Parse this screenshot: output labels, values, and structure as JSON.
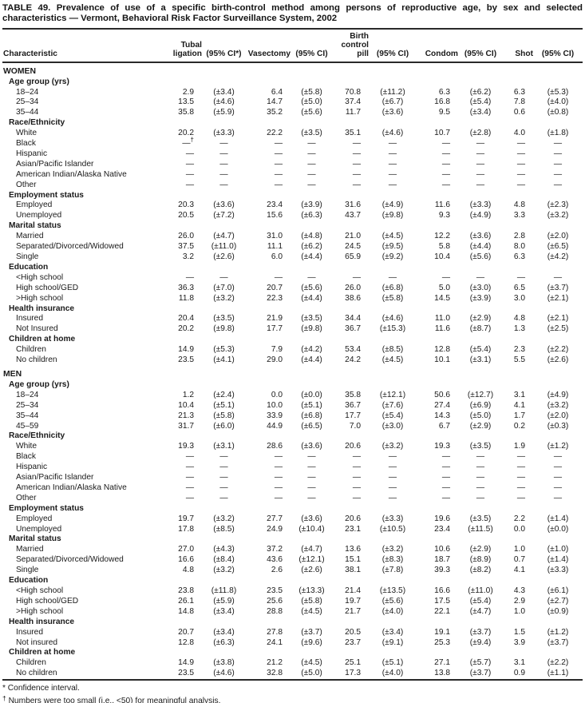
{
  "title": "TABLE 49. Prevalence of use of a specific birth-control method among persons of reproductive age, by sex and selected characteristics — Vermont, Behavioral Risk Factor Surveillance System, 2002",
  "table": {
    "columns": [
      "Characteristic",
      "Tubal\nligation",
      "(95% CI*)",
      "Vasectomy",
      "(95% CI)",
      "Birth\ncontrol\npill",
      "(95% CI)",
      "Condom",
      "(95% CI)",
      "Shot",
      "(95% CI)"
    ],
    "sections": [
      {
        "group": "WOMEN",
        "subsections": [
          {
            "label": "Age group (yrs)",
            "rows": [
              {
                "label": "18–24",
                "values": [
                  "2.9",
                  "(±3.4)",
                  "6.4",
                  "(±5.8)",
                  "70.8",
                  "(±11.2)",
                  "6.3",
                  "(±6.2)",
                  "6.3",
                  "(±5.3)"
                ]
              },
              {
                "label": "25–34",
                "values": [
                  "13.5",
                  "(±4.6)",
                  "14.7",
                  "(±5.0)",
                  "37.4",
                  "(±6.7)",
                  "16.8",
                  "(±5.4)",
                  "7.8",
                  "(±4.0)"
                ]
              },
              {
                "label": "35–44",
                "values": [
                  "35.8",
                  "(±5.9)",
                  "35.2",
                  "(±5.6)",
                  "11.7",
                  "(±3.6)",
                  "9.5",
                  "(±3.4)",
                  "0.6",
                  "(±0.8)"
                ]
              }
            ]
          },
          {
            "label": "Race/Ethnicity",
            "rows": [
              {
                "label": "White",
                "values": [
                  "20.2",
                  "(±3.3)",
                  "22.2",
                  "(±3.5)",
                  "35.1",
                  "(±4.6)",
                  "10.7",
                  "(±2.8)",
                  "4.0",
                  "(±1.8)"
                ]
              },
              {
                "label": "Black",
                "values": [
                  "—†",
                  "—",
                  "—",
                  "—",
                  "—",
                  "—",
                  "—",
                  "—",
                  "—",
                  "—"
                ]
              },
              {
                "label": "Hispanic",
                "values": [
                  "—",
                  "—",
                  "—",
                  "—",
                  "—",
                  "—",
                  "—",
                  "—",
                  "—",
                  "—"
                ]
              },
              {
                "label": "Asian/Pacific Islander",
                "values": [
                  "—",
                  "—",
                  "—",
                  "—",
                  "—",
                  "—",
                  "—",
                  "—",
                  "—",
                  "—"
                ]
              },
              {
                "label": "American Indian/Alaska Native",
                "values": [
                  "—",
                  "—",
                  "—",
                  "—",
                  "—",
                  "—",
                  "—",
                  "—",
                  "—",
                  "—"
                ]
              },
              {
                "label": "Other",
                "values": [
                  "—",
                  "—",
                  "—",
                  "—",
                  "—",
                  "—",
                  "—",
                  "—",
                  "—",
                  "—"
                ]
              }
            ]
          },
          {
            "label": "Employment status",
            "rows": [
              {
                "label": "Employed",
                "values": [
                  "20.3",
                  "(±3.6)",
                  "23.4",
                  "(±3.9)",
                  "31.6",
                  "(±4.9)",
                  "11.6",
                  "(±3.3)",
                  "4.8",
                  "(±2.3)"
                ]
              },
              {
                "label": "Unemployed",
                "values": [
                  "20.5",
                  "(±7.2)",
                  "15.6",
                  "(±6.3)",
                  "43.7",
                  "(±9.8)",
                  "9.3",
                  "(±4.9)",
                  "3.3",
                  "(±3.2)"
                ]
              }
            ]
          },
          {
            "label": "Marital status",
            "rows": [
              {
                "label": "Married",
                "values": [
                  "26.0",
                  "(±4.7)",
                  "31.0",
                  "(±4.8)",
                  "21.0",
                  "(±4.5)",
                  "12.2",
                  "(±3.6)",
                  "2.8",
                  "(±2.0)"
                ]
              },
              {
                "label": "Separated/Divorced/Widowed",
                "values": [
                  "37.5",
                  "(±11.0)",
                  "11.1",
                  "(±6.2)",
                  "24.5",
                  "(±9.5)",
                  "5.8",
                  "(±4.4)",
                  "8.0",
                  "(±6.5)"
                ]
              },
              {
                "label": "Single",
                "values": [
                  "3.2",
                  "(±2.6)",
                  "6.0",
                  "(±4.4)",
                  "65.9",
                  "(±9.2)",
                  "10.4",
                  "(±5.6)",
                  "6.3",
                  "(±4.2)"
                ]
              }
            ]
          },
          {
            "label": "Education",
            "rows": [
              {
                "label": "<High school",
                "values": [
                  "—",
                  "—",
                  "—",
                  "—",
                  "—",
                  "—",
                  "—",
                  "—",
                  "—",
                  "—"
                ]
              },
              {
                "label": "High school/GED",
                "values": [
                  "36.3",
                  "(±7.0)",
                  "20.7",
                  "(±5.6)",
                  "26.0",
                  "(±6.8)",
                  "5.0",
                  "(±3.0)",
                  "6.5",
                  "(±3.7)"
                ]
              },
              {
                "label": ">High school",
                "values": [
                  "11.8",
                  "(±3.2)",
                  "22.3",
                  "(±4.4)",
                  "38.6",
                  "(±5.8)",
                  "14.5",
                  "(±3.9)",
                  "3.0",
                  "(±2.1)"
                ]
              }
            ]
          },
          {
            "label": "Health insurance",
            "rows": [
              {
                "label": "Insured",
                "values": [
                  "20.4",
                  "(±3.5)",
                  "21.9",
                  "(±3.5)",
                  "34.4",
                  "(±4.6)",
                  "11.0",
                  "(±2.9)",
                  "4.8",
                  "(±2.1)"
                ]
              },
              {
                "label": "Not Insured",
                "values": [
                  "20.2",
                  "(±9.8)",
                  "17.7",
                  "(±9.8)",
                  "36.7",
                  "(±15.3)",
                  "11.6",
                  "(±8.7)",
                  "1.3",
                  "(±2.5)"
                ]
              }
            ]
          },
          {
            "label": "Children at home",
            "rows": [
              {
                "label": "Children",
                "values": [
                  "14.9",
                  "(±5.3)",
                  "7.9",
                  "(±4.2)",
                  "53.4",
                  "(±8.5)",
                  "12.8",
                  "(±5.4)",
                  "2.3",
                  "(±2.2)"
                ]
              },
              {
                "label": "No children",
                "values": [
                  "23.5",
                  "(±4.1)",
                  "29.0",
                  "(±4.4)",
                  "24.2",
                  "(±4.5)",
                  "10.1",
                  "(±3.1)",
                  "5.5",
                  "(±2.6)"
                ]
              }
            ]
          }
        ]
      },
      {
        "group": "MEN",
        "subsections": [
          {
            "label": "Age group (yrs)",
            "rows": [
              {
                "label": "18–24",
                "values": [
                  "1.2",
                  "(±2.4)",
                  "0.0",
                  "(±0.0)",
                  "35.8",
                  "(±12.1)",
                  "50.6",
                  "(±12.7)",
                  "3.1",
                  "(±4.9)"
                ]
              },
              {
                "label": "25–34",
                "values": [
                  "10.4",
                  "(±5.1)",
                  "10.0",
                  "(±5.1)",
                  "36.7",
                  "(±7.6)",
                  "27.4",
                  "(±6.9)",
                  "4.1",
                  "(±3.2)"
                ]
              },
              {
                "label": "35–44",
                "values": [
                  "21.3",
                  "(±5.8)",
                  "33.9",
                  "(±6.8)",
                  "17.7",
                  "(±5.4)",
                  "14.3",
                  "(±5.0)",
                  "1.7",
                  "(±2.0)"
                ]
              },
              {
                "label": "45–59",
                "values": [
                  "31.7",
                  "(±6.0)",
                  "44.9",
                  "(±6.5)",
                  "7.0",
                  "(±3.0)",
                  "6.7",
                  "(±2.9)",
                  "0.2",
                  "(±0.3)"
                ]
              }
            ]
          },
          {
            "label": "Race/Ethnicity",
            "rows": [
              {
                "label": "White",
                "values": [
                  "19.3",
                  "(±3.1)",
                  "28.6",
                  "(±3.6)",
                  "20.6",
                  "(±3.2)",
                  "19.3",
                  "(±3.5)",
                  "1.9",
                  "(±1.2)"
                ]
              },
              {
                "label": "Black",
                "values": [
                  "—",
                  "—",
                  "—",
                  "—",
                  "—",
                  "—",
                  "—",
                  "—",
                  "—",
                  "—"
                ]
              },
              {
                "label": "Hispanic",
                "values": [
                  "—",
                  "—",
                  "—",
                  "—",
                  "—",
                  "—",
                  "—",
                  "—",
                  "—",
                  "—"
                ]
              },
              {
                "label": "Asian/Pacific Islander",
                "values": [
                  "—",
                  "—",
                  "—",
                  "—",
                  "—",
                  "—",
                  "—",
                  "—",
                  "—",
                  "—"
                ]
              },
              {
                "label": "American Indian/Alaska Native",
                "values": [
                  "—",
                  "—",
                  "—",
                  "—",
                  "—",
                  "—",
                  "—",
                  "—",
                  "—",
                  "—"
                ]
              },
              {
                "label": "Other",
                "values": [
                  "—",
                  "—",
                  "—",
                  "—",
                  "—",
                  "—",
                  "—",
                  "—",
                  "—",
                  "—"
                ]
              }
            ]
          },
          {
            "label": "Employment status",
            "rows": [
              {
                "label": "Employed",
                "values": [
                  "19.7",
                  "(±3.2)",
                  "27.7",
                  "(±3.6)",
                  "20.6",
                  "(±3.3)",
                  "19.6",
                  "(±3.5)",
                  "2.2",
                  "(±1.4)"
                ]
              },
              {
                "label": "Unemployed",
                "values": [
                  "17.8",
                  "(±8.5)",
                  "24.9",
                  "(±10.4)",
                  "23.1",
                  "(±10.5)",
                  "23.4",
                  "(±11.5)",
                  "0.0",
                  "(±0.0)"
                ]
              }
            ]
          },
          {
            "label": "Marital status",
            "rows": [
              {
                "label": "Married",
                "values": [
                  "27.0",
                  "(±4.3)",
                  "37.2",
                  "(±4.7)",
                  "13.6",
                  "(±3.2)",
                  "10.6",
                  "(±2.9)",
                  "1.0",
                  "(±1.0)"
                ]
              },
              {
                "label": "Separated/Divorced/Widowed",
                "values": [
                  "16.6",
                  "(±8.4)",
                  "43.6",
                  "(±12.1)",
                  "15.1",
                  "(±8.3)",
                  "18.7",
                  "(±8.9)",
                  "0.7",
                  "(±1.4)"
                ]
              },
              {
                "label": "Single",
                "values": [
                  "4.8",
                  "(±3.2)",
                  "2.6",
                  "(±2.6)",
                  "38.1",
                  "(±7.8)",
                  "39.3",
                  "(±8.2)",
                  "4.1",
                  "(±3.3)"
                ]
              }
            ]
          },
          {
            "label": "Education",
            "rows": [
              {
                "label": "<High school",
                "values": [
                  "23.8",
                  "(±11.8)",
                  "23.5",
                  "(±13.3)",
                  "21.4",
                  "(±13.5)",
                  "16.6",
                  "(±11.0)",
                  "4.3",
                  "(±6.1)"
                ]
              },
              {
                "label": "High school/GED",
                "values": [
                  "26.1",
                  "(±5.9)",
                  "25.6",
                  "(±5.8)",
                  "19.7",
                  "(±5.6)",
                  "17.5",
                  "(±5.4)",
                  "2.9",
                  "(±2.7)"
                ]
              },
              {
                "label": ">High school",
                "values": [
                  "14.8",
                  "(±3.4)",
                  "28.8",
                  "(±4.5)",
                  "21.7",
                  "(±4.0)",
                  "22.1",
                  "(±4.7)",
                  "1.0",
                  "(±0.9)"
                ]
              }
            ]
          },
          {
            "label": "Health insurance",
            "rows": [
              {
                "label": "Insured",
                "values": [
                  "20.7",
                  "(±3.4)",
                  "27.8",
                  "(±3.7)",
                  "20.5",
                  "(±3.4)",
                  "19.1",
                  "(±3.7)",
                  "1.5",
                  "(±1.2)"
                ]
              },
              {
                "label": "Not insured",
                "values": [
                  "12.8",
                  "(±6.3)",
                  "24.1",
                  "(±9.6)",
                  "23.7",
                  "(±9.1)",
                  "25.3",
                  "(±9.4)",
                  "3.9",
                  "(±3.7)"
                ]
              }
            ]
          },
          {
            "label": "Children at home",
            "rows": [
              {
                "label": "Children",
                "values": [
                  "14.9",
                  "(±3.8)",
                  "21.2",
                  "(±4.5)",
                  "25.1",
                  "(±5.1)",
                  "27.1",
                  "(±5.7)",
                  "3.1",
                  "(±2.2)"
                ]
              },
              {
                "label": "No children",
                "values": [
                  "23.5",
                  "(±4.6)",
                  "32.8",
                  "(±5.0)",
                  "17.3",
                  "(±4.0)",
                  "13.8",
                  "(±3.7)",
                  "0.9",
                  "(±1.1)"
                ]
              }
            ]
          }
        ]
      }
    ]
  },
  "footnotes": [
    {
      "symbol": "*",
      "text": "Confidence interval."
    },
    {
      "symbol": "†",
      "text": "Numbers were too small (i.e., <50) for meaningful analysis."
    }
  ]
}
